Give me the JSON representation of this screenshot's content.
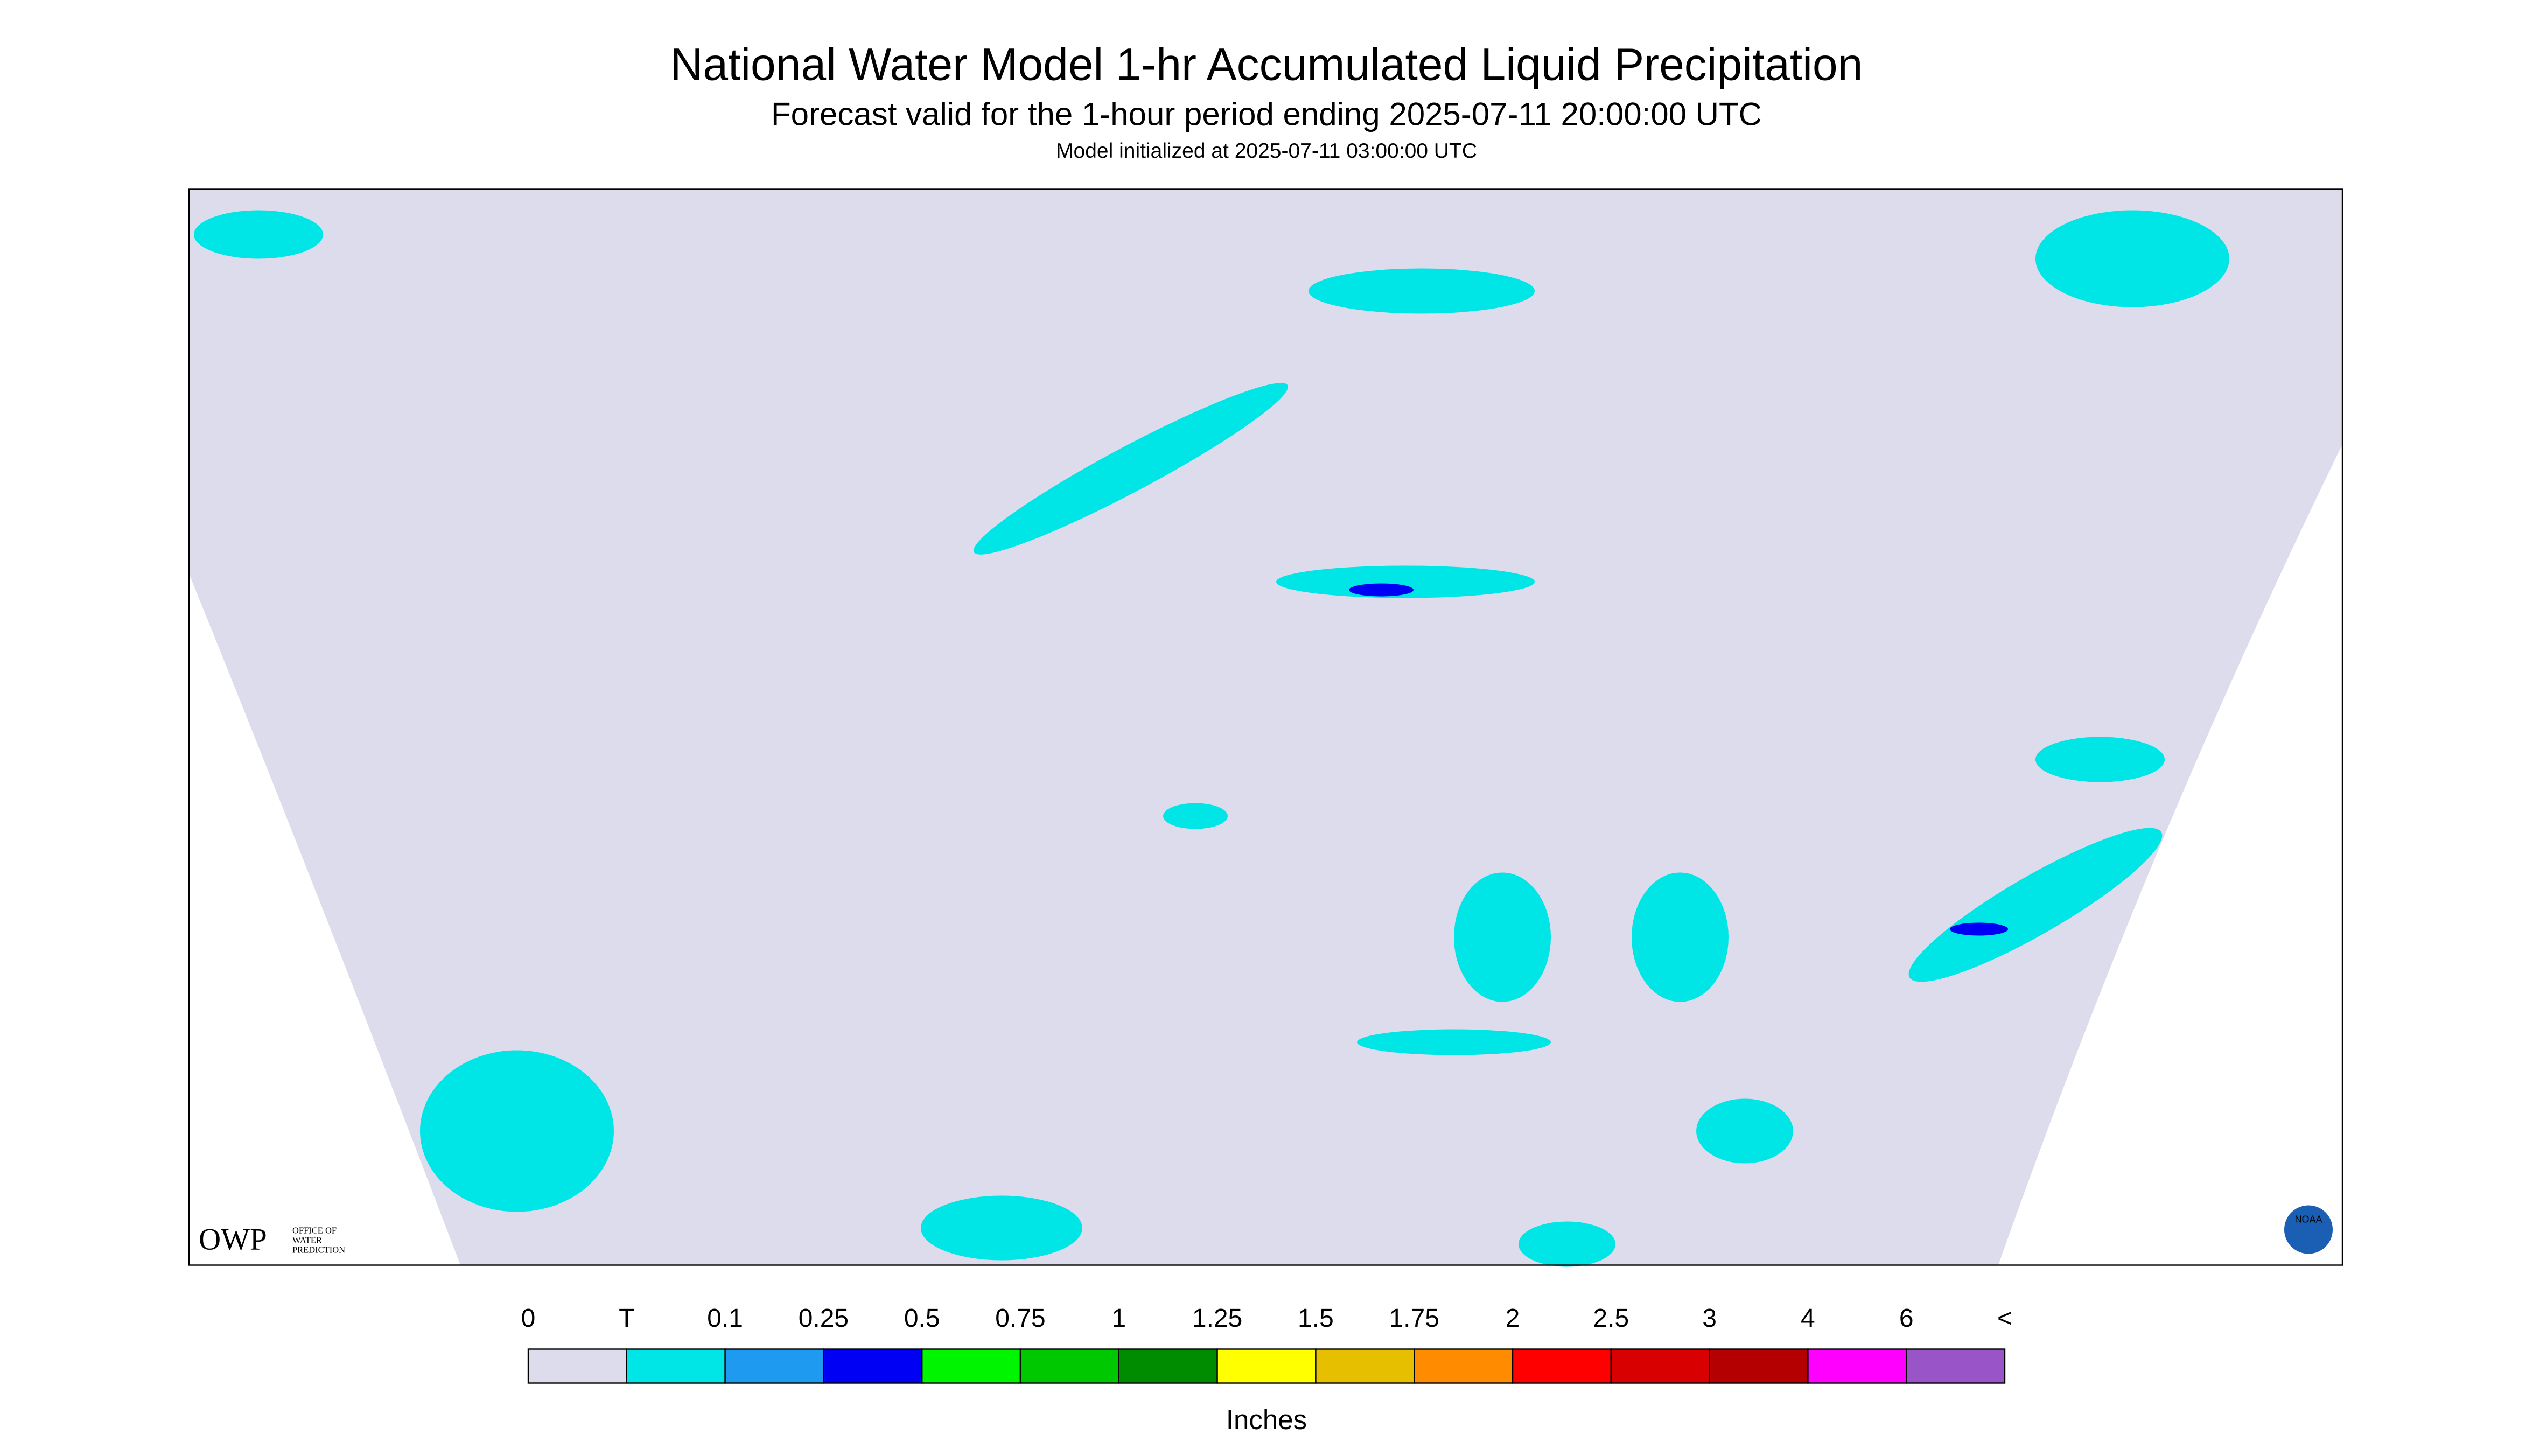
{
  "header": {
    "title": "National Water Model 1-hr Accumulated Liquid Precipitation",
    "subtitle": "Forecast valid for the 1-hour period ending 2025-07-11 20:00:00 UTC",
    "note": "Model initialized at 2025-07-11 03:00:00 UTC"
  },
  "legend": {
    "labels": [
      "0",
      "T",
      "0.1",
      "0.25",
      "0.5",
      "0.75",
      "1",
      "1.25",
      "1.5",
      "1.75",
      "2",
      "2.5",
      "3",
      "4",
      "6",
      "<"
    ],
    "colors": [
      "#dcdcec",
      "#00e6e6",
      "#1e9bf0",
      "#0000f5",
      "#00f500",
      "#00c800",
      "#008c00",
      "#ffff00",
      "#e6c000",
      "#ff8c00",
      "#ff0000",
      "#d80000",
      "#b40000",
      "#ff00ff",
      "#9955c8"
    ],
    "units": "Inches"
  },
  "logo": {
    "owp": "OWP",
    "line1": "OFFICE OF",
    "line2": "WATER",
    "line3": "PREDICTION",
    "noaa": "NOAA"
  }
}
